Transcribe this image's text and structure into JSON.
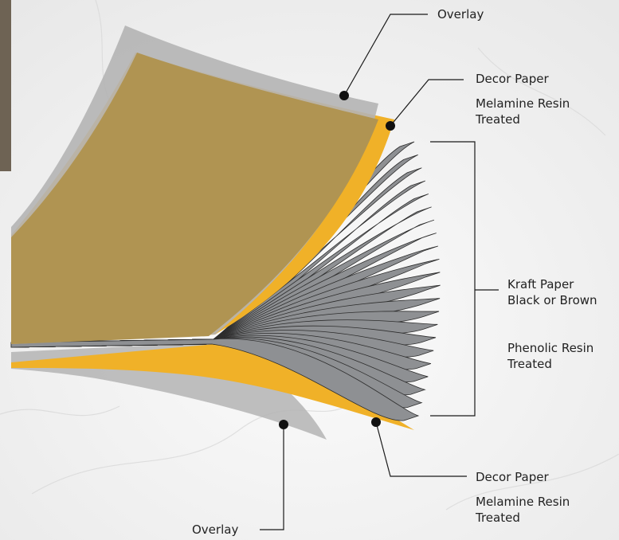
{
  "labels": {
    "overlay_top": "Overlay",
    "decor_top_line1": "Decor Paper",
    "decor_top_line2": "Melamine Resin",
    "decor_top_line3": "Treated",
    "kraft_line1": "Kraft Paper",
    "kraft_line2": "Black or Brown",
    "phenolic_line1": "Phenolic Resin",
    "phenolic_line2": "Treated",
    "decor_bottom_line1": "Decor Paper",
    "decor_bottom_line2": "Melamine Resin",
    "decor_bottom_line3": "Treated",
    "overlay_bottom": "Overlay"
  },
  "colors": {
    "overlay": "#b4b4b4",
    "decor": "#f0b128",
    "decor_tinted": "#b09452",
    "kraft": "#8e9093",
    "kraft_edge": "#2d2d2d",
    "leader": "#1a1a1a",
    "background": "#f3f3f3"
  },
  "kraft_sheet_count": 22
}
